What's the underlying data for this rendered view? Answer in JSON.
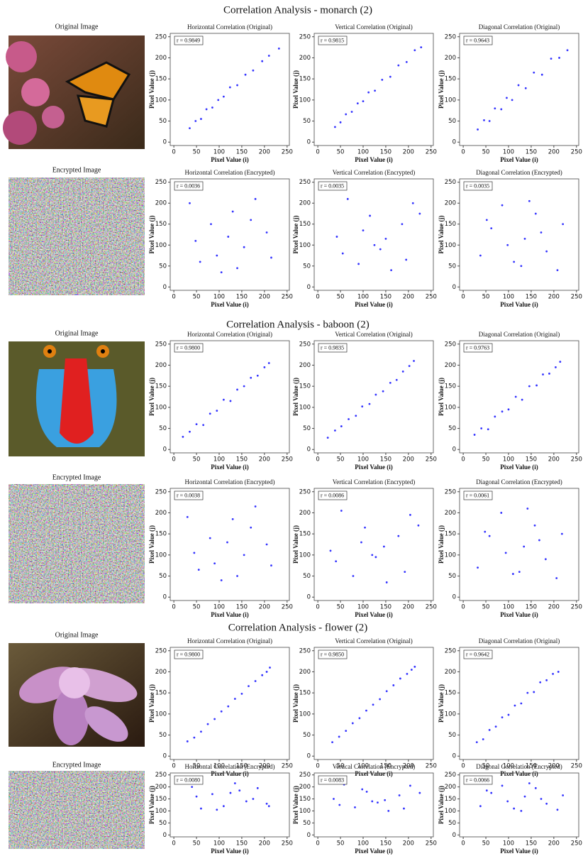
{
  "sections": [
    {
      "title": "Correlation Analysis - monarch (2)",
      "original_label": "Original Image",
      "encrypted_label": "Encrypted Image"
    },
    {
      "title": "Correlation Analysis - baboon (2)",
      "original_label": "Original Image",
      "encrypted_label": "Encrypted Image"
    },
    {
      "title": "Correlation Analysis - flower (2)",
      "original_label": "Original Image",
      "encrypted_label": "Encrypted Image"
    }
  ],
  "chart_data": [
    {
      "type": "scatter",
      "title": "Horizontal Correlation (Original)",
      "annotation": "r = 0.9849",
      "xlabel": "Pixel Value (i)",
      "ylabel": "Pixel Value (j)",
      "color": "#0000ff",
      "xlim": [
        -8,
        255
      ],
      "ylim": [
        -8,
        258
      ],
      "xticks": [
        0,
        50,
        100,
        150,
        200,
        250
      ],
      "yticks": [
        0,
        50,
        100,
        150,
        200,
        250
      ],
      "x": [
        35,
        48,
        60,
        72,
        85,
        98,
        110,
        124,
        140,
        158,
        175,
        195,
        210,
        232
      ],
      "y": [
        33,
        50,
        55,
        78,
        82,
        100,
        108,
        130,
        135,
        160,
        170,
        192,
        205,
        222
      ]
    },
    {
      "type": "scatter",
      "title": "Vertical Correlation (Original)",
      "annotation": "r = 0.9815",
      "xlabel": "Pixel Value (i)",
      "ylabel": "Pixel Value (j)",
      "color": "#0000ff",
      "xlim": [
        -8,
        255
      ],
      "ylim": [
        -8,
        258
      ],
      "xticks": [
        0,
        50,
        100,
        150,
        200,
        250
      ],
      "yticks": [
        0,
        50,
        100,
        150,
        200,
        250
      ],
      "x": [
        38,
        50,
        62,
        75,
        88,
        100,
        112,
        126,
        142,
        160,
        178,
        196,
        214,
        228
      ],
      "y": [
        36,
        47,
        66,
        72,
        92,
        97,
        118,
        122,
        148,
        155,
        182,
        190,
        218,
        225
      ]
    },
    {
      "type": "scatter",
      "title": "Diagonal Correlation (Original)",
      "annotation": "r = 0.9643",
      "xlabel": "Pixel Value (i)",
      "ylabel": "Pixel Value (j)",
      "color": "#0000ff",
      "xlim": [
        -8,
        255
      ],
      "ylim": [
        -8,
        258
      ],
      "xticks": [
        0,
        50,
        100,
        150,
        200,
        250
      ],
      "yticks": [
        0,
        50,
        100,
        150,
        200,
        250
      ],
      "x": [
        32,
        46,
        58,
        70,
        84,
        96,
        108,
        122,
        138,
        156,
        174,
        194,
        212,
        230
      ],
      "y": [
        30,
        52,
        50,
        80,
        78,
        105,
        100,
        135,
        128,
        165,
        160,
        198,
        200,
        218
      ]
    },
    {
      "type": "scatter",
      "title": "Horizontal Correlation (Encrypted)",
      "annotation": "r = 0.0036",
      "xlabel": "Pixel Value (i)",
      "ylabel": "Pixel Value (j)",
      "color": "#0000ff",
      "xlim": [
        -8,
        255
      ],
      "ylim": [
        -8,
        258
      ],
      "xticks": [
        0,
        50,
        100,
        150,
        200,
        250
      ],
      "yticks": [
        0,
        50,
        100,
        150,
        200,
        250
      ],
      "x": [
        35,
        58,
        82,
        105,
        130,
        155,
        180,
        205,
        48,
        95,
        140,
        170,
        215,
        120
      ],
      "y": [
        200,
        60,
        150,
        35,
        180,
        95,
        210,
        130,
        110,
        75,
        45,
        160,
        70,
        120
      ]
    },
    {
      "type": "scatter",
      "title": "Vertical Correlation (Encrypted)",
      "annotation": "r = 0.0035",
      "xlabel": "Pixel Value (i)",
      "ylabel": "Pixel Value (j)",
      "color": "#0000ff",
      "xlim": [
        -8,
        255
      ],
      "ylim": [
        -8,
        258
      ],
      "xticks": [
        0,
        50,
        100,
        150,
        200,
        250
      ],
      "yticks": [
        0,
        50,
        100,
        150,
        200,
        250
      ],
      "x": [
        42,
        66,
        90,
        115,
        138,
        162,
        186,
        210,
        55,
        100,
        150,
        195,
        225,
        125
      ],
      "y": [
        120,
        210,
        55,
        170,
        90,
        40,
        150,
        200,
        80,
        135,
        115,
        65,
        175,
        100
      ]
    },
    {
      "type": "scatter",
      "title": "Diagonal Correlation (Encrypted)",
      "annotation": "r = 0.0035",
      "xlabel": "Pixel Value (i)",
      "ylabel": "Pixel Value (j)",
      "color": "#0000ff",
      "xlim": [
        -8,
        255
      ],
      "ylim": [
        -8,
        258
      ],
      "xticks": [
        0,
        50,
        100,
        150,
        200,
        250
      ],
      "yticks": [
        0,
        50,
        100,
        150,
        200,
        250
      ],
      "x": [
        38,
        62,
        86,
        112,
        136,
        160,
        184,
        208,
        52,
        98,
        146,
        172,
        220,
        128
      ],
      "y": [
        75,
        140,
        195,
        60,
        115,
        175,
        85,
        40,
        160,
        100,
        205,
        130,
        150,
        50
      ]
    },
    {
      "type": "scatter",
      "title": "Horizontal Correlation (Original)",
      "annotation": "r = 0.9800",
      "xlabel": "Pixel Value (i)",
      "ylabel": "Pixel Value (j)",
      "color": "#0000ff",
      "xlim": [
        -8,
        255
      ],
      "ylim": [
        -8,
        258
      ],
      "xticks": [
        0,
        50,
        100,
        150,
        200,
        250
      ],
      "yticks": [
        0,
        50,
        100,
        150,
        200,
        250
      ],
      "x": [
        20,
        35,
        50,
        65,
        80,
        95,
        110,
        125,
        140,
        155,
        170,
        185,
        200,
        210
      ],
      "y": [
        30,
        42,
        60,
        58,
        85,
        92,
        118,
        115,
        142,
        150,
        170,
        175,
        195,
        205
      ]
    },
    {
      "type": "scatter",
      "title": "Vertical Correlation (Original)",
      "annotation": "r = 0.9835",
      "xlabel": "Pixel Value (i)",
      "ylabel": "Pixel Value (j)",
      "color": "#0000ff",
      "xlim": [
        -8,
        255
      ],
      "ylim": [
        -8,
        258
      ],
      "xticks": [
        0,
        50,
        100,
        150,
        200,
        250
      ],
      "yticks": [
        0,
        50,
        100,
        150,
        200,
        250
      ],
      "x": [
        22,
        38,
        52,
        68,
        84,
        98,
        114,
        128,
        144,
        160,
        174,
        188,
        202,
        212
      ],
      "y": [
        28,
        45,
        55,
        72,
        80,
        102,
        108,
        130,
        138,
        158,
        165,
        185,
        198,
        210
      ]
    },
    {
      "type": "scatter",
      "title": "Diagonal Correlation (Original)",
      "annotation": "r = 0.9763",
      "xlabel": "Pixel Value (i)",
      "ylabel": "Pixel Value (j)",
      "color": "#0000ff",
      "xlim": [
        -8,
        255
      ],
      "ylim": [
        -8,
        258
      ],
      "xticks": [
        0,
        50,
        100,
        150,
        200,
        250
      ],
      "yticks": [
        0,
        50,
        100,
        150,
        200,
        250
      ],
      "x": [
        25,
        40,
        55,
        70,
        86,
        100,
        116,
        130,
        146,
        162,
        176,
        190,
        204,
        214
      ],
      "y": [
        35,
        50,
        48,
        78,
        90,
        95,
        125,
        118,
        150,
        152,
        178,
        180,
        195,
        208
      ]
    },
    {
      "type": "scatter",
      "title": "Horizontal Correlation (Encrypted)",
      "annotation": "r = 0.0038",
      "xlabel": "Pixel Value (i)",
      "ylabel": "Pixel Value (j)",
      "color": "#0000ff",
      "xlim": [
        -8,
        255
      ],
      "ylim": [
        -8,
        258
      ],
      "xticks": [
        0,
        50,
        100,
        150,
        200,
        250
      ],
      "yticks": [
        0,
        50,
        100,
        150,
        200,
        250
      ],
      "x": [
        30,
        55,
        80,
        105,
        130,
        155,
        180,
        205,
        45,
        90,
        140,
        170,
        215,
        118
      ],
      "y": [
        190,
        65,
        140,
        40,
        185,
        100,
        215,
        125,
        105,
        80,
        50,
        165,
        75,
        130
      ]
    },
    {
      "type": "scatter",
      "title": "Vertical Correlation (Encrypted)",
      "annotation": "r = 0.0086",
      "xlabel": "Pixel Value (i)",
      "ylabel": "Pixel Value (j)",
      "color": "#0000ff",
      "xlim": [
        -8,
        255
      ],
      "ylim": [
        -8,
        258
      ],
      "xticks": [
        0,
        50,
        100,
        150,
        200,
        250
      ],
      "yticks": [
        0,
        50,
        100,
        150,
        200,
        250
      ],
      "x": [
        28,
        52,
        78,
        104,
        128,
        152,
        178,
        204,
        40,
        96,
        146,
        192,
        222,
        120
      ],
      "y": [
        110,
        205,
        50,
        165,
        95,
        35,
        145,
        195,
        85,
        130,
        120,
        60,
        170,
        100
      ]
    },
    {
      "type": "scatter",
      "title": "Diagonal Correlation (Encrypted)",
      "annotation": "r = 0.0061",
      "xlabel": "Pixel Value (i)",
      "ylabel": "Pixel Value (j)",
      "color": "#0000ff",
      "xlim": [
        -8,
        255
      ],
      "ylim": [
        -8,
        258
      ],
      "xticks": [
        0,
        50,
        100,
        150,
        200,
        250
      ],
      "yticks": [
        0,
        50,
        100,
        150,
        200,
        250
      ],
      "x": [
        32,
        58,
        84,
        110,
        134,
        158,
        182,
        206,
        48,
        94,
        142,
        168,
        218,
        124
      ],
      "y": [
        70,
        145,
        200,
        55,
        120,
        170,
        90,
        45,
        155,
        105,
        210,
        135,
        150,
        60
      ]
    },
    {
      "type": "scatter",
      "title": "Horizontal Correlation (Original)",
      "annotation": "r = 0.9800",
      "xlabel": "Pixel Value (i)",
      "ylabel": "Pixel Value (j)",
      "color": "#0000ff",
      "xlim": [
        -8,
        255
      ],
      "ylim": [
        -8,
        258
      ],
      "xticks": [
        0,
        50,
        100,
        150,
        200,
        250
      ],
      "yticks": [
        0,
        50,
        100,
        150,
        200,
        250
      ],
      "x": [
        30,
        45,
        60,
        75,
        90,
        105,
        120,
        135,
        150,
        165,
        180,
        195,
        205,
        212
      ],
      "y": [
        35,
        44,
        58,
        76,
        88,
        106,
        118,
        136,
        148,
        166,
        178,
        192,
        200,
        210
      ]
    },
    {
      "type": "scatter",
      "title": "Vertical Correlation (Original)",
      "annotation": "r = 0.9850",
      "xlabel": "Pixel Value (i)",
      "ylabel": "Pixel Value (j)",
      "color": "#0000ff",
      "xlim": [
        -8,
        255
      ],
      "ylim": [
        -8,
        258
      ],
      "xticks": [
        0,
        50,
        100,
        150,
        200,
        250
      ],
      "yticks": [
        0,
        50,
        100,
        150,
        200,
        250
      ],
      "x": [
        32,
        47,
        62,
        77,
        92,
        107,
        122,
        137,
        152,
        167,
        182,
        197,
        207,
        214
      ],
      "y": [
        33,
        46,
        60,
        78,
        90,
        108,
        122,
        135,
        154,
        168,
        184,
        195,
        205,
        212
      ]
    },
    {
      "type": "scatter",
      "title": "Diagonal Correlation (Original)",
      "annotation": "r = 0.9642",
      "xlabel": "Pixel Value (i)",
      "ylabel": "Pixel Value (j)",
      "color": "#0000ff",
      "xlim": [
        -8,
        255
      ],
      "ylim": [
        -8,
        258
      ],
      "xticks": [
        0,
        50,
        100,
        150,
        200,
        250
      ],
      "yticks": [
        0,
        50,
        100,
        150,
        200,
        250
      ],
      "x": [
        30,
        44,
        58,
        72,
        86,
        100,
        114,
        128,
        142,
        156,
        170,
        184,
        198,
        210
      ],
      "y": [
        33,
        40,
        62,
        70,
        92,
        98,
        120,
        125,
        150,
        152,
        175,
        180,
        195,
        200
      ]
    },
    {
      "type": "scatter",
      "title": "Horizontal Correlation (Encrypted)",
      "annotation": "r = 0.0080",
      "xlabel": "Pixel Value (i)",
      "ylabel": "Pixel Value (j)",
      "color": "#0000ff",
      "xlim": [
        -8,
        255
      ],
      "ylim": [
        -8,
        258
      ],
      "xticks": [
        0,
        50,
        100,
        150,
        200,
        250
      ],
      "yticks": [
        0,
        50,
        100,
        150,
        200,
        250
      ],
      "x": [
        40,
        60,
        85,
        110,
        135,
        160,
        185,
        205,
        50,
        95,
        145,
        175,
        210,
        125
      ],
      "y": [
        200,
        110,
        170,
        120,
        215,
        140,
        195,
        130,
        160,
        105,
        185,
        150,
        120,
        175
      ]
    },
    {
      "type": "scatter",
      "title": "Vertical Correlation (Encrypted)",
      "annotation": "r = 0.0083",
      "xlabel": "Pixel Value (i)",
      "ylabel": "Pixel Value (j)",
      "color": "#0000ff",
      "xlim": [
        -8,
        255
      ],
      "ylim": [
        -8,
        258
      ],
      "xticks": [
        0,
        50,
        100,
        150,
        200,
        250
      ],
      "yticks": [
        0,
        50,
        100,
        150,
        200,
        250
      ],
      "x": [
        35,
        58,
        82,
        108,
        132,
        156,
        180,
        204,
        48,
        98,
        148,
        190,
        225,
        120
      ],
      "y": [
        150,
        210,
        115,
        180,
        135,
        100,
        165,
        205,
        125,
        190,
        145,
        110,
        175,
        140
      ]
    },
    {
      "type": "scatter",
      "title": "Diagonal Correlation (Encrypted)",
      "annotation": "r = 0.0066",
      "xlabel": "Pixel Value (i)",
      "ylabel": "Pixel Value (j)",
      "color": "#0000ff",
      "xlim": [
        -8,
        255
      ],
      "ylim": [
        -8,
        258
      ],
      "xticks": [
        0,
        50,
        100,
        150,
        200,
        250
      ],
      "yticks": [
        0,
        50,
        100,
        150,
        200,
        250
      ],
      "x": [
        38,
        62,
        86,
        112,
        136,
        160,
        184,
        208,
        52,
        98,
        146,
        172,
        220,
        128
      ],
      "y": [
        120,
        175,
        205,
        110,
        160,
        195,
        130,
        105,
        185,
        140,
        215,
        150,
        165,
        100
      ]
    }
  ]
}
